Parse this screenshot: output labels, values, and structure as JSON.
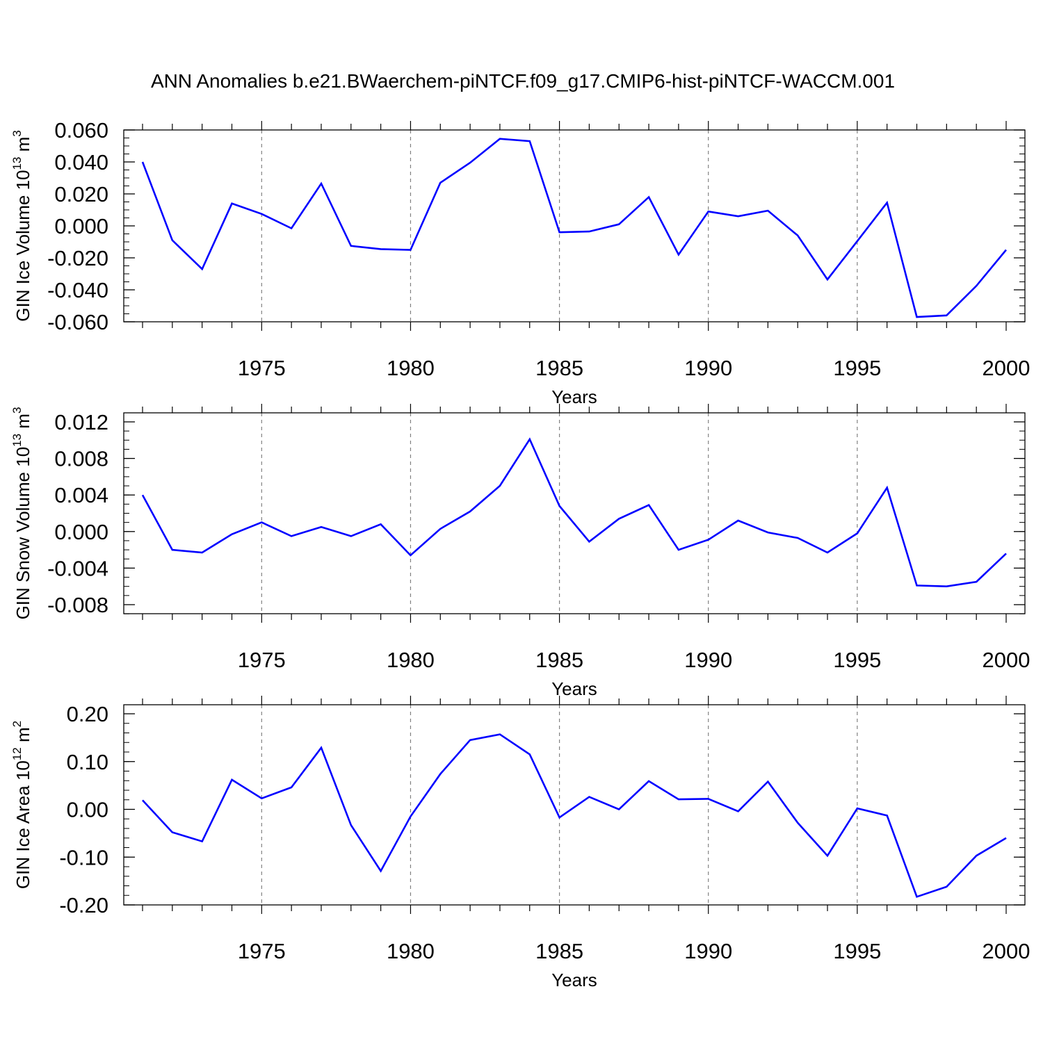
{
  "title": "ANN Anomalies b.e21.BWaerchem-piNTCF.f09_g17.CMIP6-hist-piNTCF-WACCM.001",
  "colors": {
    "series": "#0000ff",
    "axis": "#000000",
    "grid": "#808080"
  },
  "chart_data": [
    {
      "type": "line",
      "ylabel_main": "GIN Ice Volume 10",
      "ylabel_exp": "13",
      "ylabel_unit": " m",
      "ylabel_unit_exp": "3",
      "xlabel": "Years",
      "xlim": [
        1971,
        2000
      ],
      "ylim": [
        -0.06,
        0.06
      ],
      "yticks": [
        -0.06,
        -0.04,
        -0.02,
        0.0,
        0.02,
        0.04,
        0.06
      ],
      "ytick_labels": [
        "-0.060",
        "-0.040",
        "-0.020",
        "0.000",
        "0.020",
        "0.040",
        "0.060"
      ],
      "yminor_step": 0.005,
      "xticks": [
        1975,
        1980,
        1985,
        1990,
        1995,
        2000
      ],
      "xtick_labels": [
        "1975",
        "1980",
        "1985",
        "1990",
        "1995",
        "2000"
      ],
      "x": [
        1971,
        1972,
        1973,
        1974,
        1975,
        1976,
        1977,
        1978,
        1979,
        1980,
        1981,
        1982,
        1983,
        1984,
        1985,
        1986,
        1987,
        1988,
        1989,
        1990,
        1991,
        1992,
        1993,
        1994,
        1995,
        1996,
        1997,
        1998,
        1999,
        2000
      ],
      "values": [
        0.04,
        -0.009,
        -0.027,
        0.014,
        0.0075,
        -0.0015,
        0.0265,
        -0.0125,
        -0.0145,
        -0.015,
        0.027,
        0.0395,
        0.0545,
        0.053,
        -0.004,
        -0.0035,
        0.001,
        0.018,
        -0.018,
        0.009,
        0.006,
        0.0095,
        -0.006,
        -0.0335,
        -0.0095,
        0.0145,
        -0.057,
        -0.056,
        -0.0375,
        -0.015
      ]
    },
    {
      "type": "line",
      "ylabel_main": "GIN Snow Volume 10",
      "ylabel_exp": "13",
      "ylabel_unit": " m",
      "ylabel_unit_exp": "3",
      "xlabel": "Years",
      "xlim": [
        1971,
        2000
      ],
      "ylim": [
        -0.009,
        0.012
      ],
      "yticks": [
        -0.008,
        -0.004,
        0.0,
        0.004,
        0.008,
        0.012
      ],
      "ytick_labels": [
        "-0.008",
        "-0.004",
        "0.000",
        "0.004",
        "0.008",
        "0.012"
      ],
      "yminor_step": 0.001,
      "xticks": [
        1975,
        1980,
        1985,
        1990,
        1995,
        2000
      ],
      "xtick_labels": [
        "1975",
        "1980",
        "1985",
        "1990",
        "1995",
        "2000"
      ],
      "x": [
        1971,
        1972,
        1973,
        1974,
        1975,
        1976,
        1977,
        1978,
        1979,
        1980,
        1981,
        1982,
        1983,
        1984,
        1985,
        1986,
        1987,
        1988,
        1989,
        1990,
        1991,
        1992,
        1993,
        1994,
        1995,
        1996,
        1997,
        1998,
        1999,
        2000
      ],
      "values": [
        0.004,
        -0.002,
        -0.0023,
        -0.0003,
        0.001,
        -0.0005,
        0.0005,
        -0.0005,
        0.0008,
        -0.0026,
        0.0003,
        0.0022,
        0.005,
        0.0101,
        0.0028,
        -0.0011,
        0.0014,
        0.0029,
        -0.002,
        -0.0009,
        0.0012,
        -0.0001,
        -0.0007,
        -0.0023,
        -0.0002,
        0.0048,
        -0.0059,
        -0.006,
        -0.0055,
        -0.0024
      ]
    },
    {
      "type": "line",
      "ylabel_main": "GIN Ice Area 10",
      "ylabel_exp": "12",
      "ylabel_unit": " m",
      "ylabel_unit_exp": "2",
      "xlabel": "Years",
      "xlim": [
        1971,
        2000
      ],
      "ylim": [
        -0.2,
        0.2
      ],
      "yticks": [
        -0.2,
        -0.1,
        0.0,
        0.1,
        0.2
      ],
      "ytick_labels": [
        "-0.20",
        "-0.10",
        "0.00",
        "0.10",
        "0.20"
      ],
      "yminor_step": 0.02,
      "xticks": [
        1975,
        1980,
        1985,
        1990,
        1995,
        2000
      ],
      "xtick_labels": [
        "1975",
        "1980",
        "1985",
        "1990",
        "1995",
        "2000"
      ],
      "x": [
        1971,
        1972,
        1973,
        1974,
        1975,
        1976,
        1977,
        1978,
        1979,
        1980,
        1981,
        1982,
        1983,
        1984,
        1985,
        1986,
        1987,
        1988,
        1989,
        1990,
        1991,
        1992,
        1993,
        1994,
        1995,
        1996,
        1997,
        1998,
        1999,
        2000
      ],
      "values": [
        0.019,
        -0.048,
        -0.067,
        0.062,
        0.023,
        0.046,
        0.129,
        -0.033,
        -0.129,
        -0.015,
        0.074,
        0.145,
        0.157,
        0.115,
        -0.017,
        0.026,
        0.0,
        0.059,
        0.021,
        0.022,
        -0.004,
        0.058,
        -0.028,
        -0.097,
        0.002,
        -0.013,
        -0.183,
        -0.162,
        -0.097,
        -0.06
      ]
    }
  ]
}
